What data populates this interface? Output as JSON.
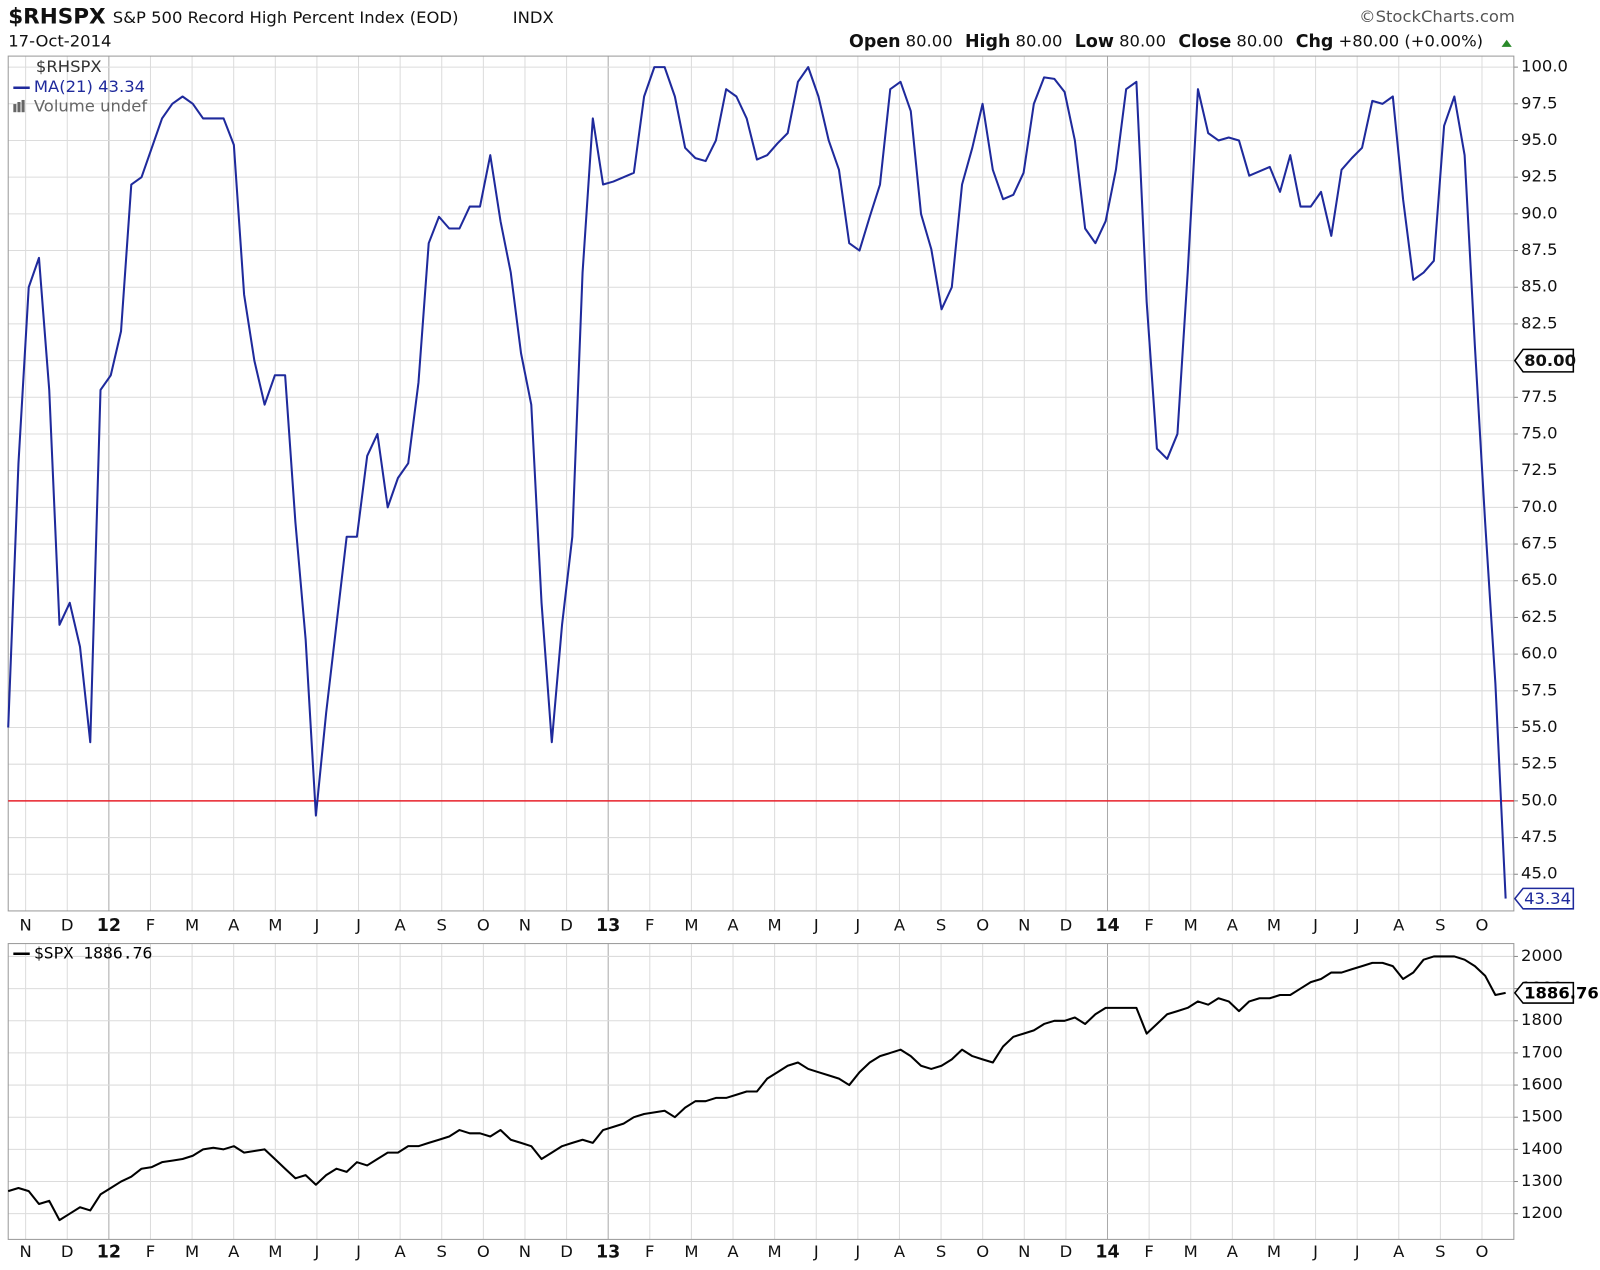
{
  "header": {
    "symbol": "$RHSPX",
    "name": "S&P 500 Record High Percent Index (EOD)",
    "exchange": "INDX",
    "source": "©StockCharts.com",
    "date": "17-Oct-2014",
    "quote": [
      {
        "label": "Open",
        "value": "80.00"
      },
      {
        "label": "High",
        "value": "80.00"
      },
      {
        "label": "Low",
        "value": "80.00"
      },
      {
        "label": "Close",
        "value": "80.00"
      },
      {
        "label": "Chg",
        "value": "+80.00 (+0.00%)"
      }
    ]
  },
  "x_axis": {
    "labels": [
      "N",
      "D",
      "12",
      "F",
      "M",
      "A",
      "M",
      "J",
      "J",
      "A",
      "S",
      "O",
      "N",
      "D",
      "13",
      "F",
      "M",
      "A",
      "M",
      "J",
      "J",
      "A",
      "S",
      "O",
      "N",
      "D",
      "14",
      "F",
      "M",
      "A",
      "M",
      "J",
      "J",
      "A",
      "S",
      "O"
    ]
  },
  "chart_data": [
    {
      "type": "line",
      "legend_notes": [
        "$RHSPX",
        "Volume undef"
      ],
      "series": [
        {
          "name": "MA(21) 43.34",
          "color": "#1f2a9c",
          "values": [
            55,
            73,
            85,
            87,
            78,
            62,
            63.5,
            60.5,
            54,
            78,
            79,
            82,
            92,
            92.5,
            94.5,
            96.5,
            97.5,
            98,
            97.5,
            96.5,
            96.5,
            96.5,
            94.7,
            84.5,
            80,
            77,
            79,
            79,
            69,
            61,
            49,
            56,
            62,
            68,
            68,
            73.5,
            75,
            70,
            72,
            73,
            78.5,
            88,
            89.8,
            89,
            89,
            90.5,
            90.5,
            94,
            89.5,
            86,
            80.5,
            77,
            63.5,
            54,
            62,
            68,
            86,
            96.5,
            92,
            92.2,
            92.5,
            92.8,
            98,
            100,
            100,
            98,
            94.5,
            93.8,
            93.6,
            95,
            98.5,
            98,
            96.5,
            93.7,
            94,
            94.8,
            95.5,
            99,
            100,
            98,
            95,
            93,
            88,
            87.5,
            89.8,
            92,
            98.5,
            99,
            97,
            90,
            87.6,
            83.5,
            85,
            92,
            94.5,
            97.5,
            93,
            91,
            91.3,
            92.8,
            97.5,
            99.3,
            99.2,
            98.3,
            95,
            89,
            88,
            89.5,
            93,
            98.5,
            99,
            84,
            74,
            73.3,
            75,
            86,
            98.5,
            95.5,
            95,
            95.2,
            95,
            92.6,
            92.9,
            93.2,
            91.5,
            94,
            90.5,
            90.5,
            91.5,
            88.5,
            93,
            93.8,
            94.5,
            97.7,
            97.5,
            98,
            91,
            85.5,
            86,
            86.8,
            96,
            98,
            94,
            81,
            69,
            58,
            43.34
          ]
        }
      ],
      "reference_line": {
        "value": 50,
        "color": "#e8202a"
      },
      "price_tag": {
        "value": 80,
        "label": "80.00"
      },
      "ylim": [
        42.5,
        100.75
      ],
      "yticks": [
        {
          "value": 45,
          "label": "45.0"
        },
        {
          "value": 47.5,
          "label": "47.5"
        },
        {
          "value": 50,
          "label": "50.0"
        },
        {
          "value": 52.5,
          "label": "52.5"
        },
        {
          "value": 55,
          "label": "55.0"
        },
        {
          "value": 57.5,
          "label": "57.5"
        },
        {
          "value": 60,
          "label": "60.0"
        },
        {
          "value": 62.5,
          "label": "62.5"
        },
        {
          "value": 65,
          "label": "65.0"
        },
        {
          "value": 67.5,
          "label": "67.5"
        },
        {
          "value": 70,
          "label": "70.0"
        },
        {
          "value": 72.5,
          "label": "72.5"
        },
        {
          "value": 75,
          "label": "75.0"
        },
        {
          "value": 77.5,
          "label": "77.5"
        },
        {
          "value": 80,
          "label": "80.0"
        },
        {
          "value": 82.5,
          "label": "82.5"
        },
        {
          "value": 85,
          "label": "85.0"
        },
        {
          "value": 87.5,
          "label": "87.5"
        },
        {
          "value": 90,
          "label": "90.0"
        },
        {
          "value": 92.5,
          "label": "92.5"
        },
        {
          "value": 95,
          "label": "95.0"
        },
        {
          "value": 97.5,
          "label": "97.5"
        },
        {
          "value": 100,
          "label": "100.0"
        }
      ],
      "grid": true
    },
    {
      "type": "line",
      "series": [
        {
          "name": "$SPX 1886.76",
          "color": "#000000",
          "values": [
            1270,
            1280,
            1270,
            1230,
            1240,
            1180,
            1200,
            1220,
            1210,
            1260,
            1280,
            1300,
            1315,
            1340,
            1345,
            1360,
            1365,
            1370,
            1380,
            1400,
            1405,
            1400,
            1410,
            1390,
            1395,
            1400,
            1370,
            1340,
            1310,
            1320,
            1290,
            1320,
            1340,
            1330,
            1360,
            1350,
            1370,
            1390,
            1390,
            1410,
            1410,
            1420,
            1430,
            1440,
            1460,
            1450,
            1450,
            1440,
            1460,
            1430,
            1420,
            1410,
            1370,
            1390,
            1410,
            1420,
            1430,
            1420,
            1460,
            1470,
            1480,
            1500,
            1510,
            1515,
            1520,
            1500,
            1530,
            1550,
            1550,
            1560,
            1560,
            1570,
            1580,
            1580,
            1620,
            1640,
            1660,
            1670,
            1650,
            1640,
            1630,
            1620,
            1600,
            1640,
            1670,
            1690,
            1700,
            1710,
            1690,
            1660,
            1650,
            1660,
            1680,
            1710,
            1690,
            1680,
            1670,
            1720,
            1750,
            1760,
            1770,
            1790,
            1800,
            1800,
            1810,
            1790,
            1820,
            1840,
            1840,
            1840,
            1840,
            1760,
            1790,
            1820,
            1830,
            1840,
            1860,
            1850,
            1870,
            1860,
            1830,
            1860,
            1870,
            1870,
            1880,
            1880,
            1900,
            1920,
            1930,
            1950,
            1950,
            1960,
            1970,
            1980,
            1980,
            1970,
            1930,
            1950,
            1990,
            2000,
            2000,
            2000,
            1990,
            1970,
            1940,
            1880,
            1886.76
          ]
        }
      ],
      "ylim": [
        1120,
        2040
      ],
      "yticks": [
        1200,
        1300,
        1400,
        1500,
        1600,
        1700,
        1800,
        1900,
        2000
      ],
      "grid": true
    }
  ]
}
